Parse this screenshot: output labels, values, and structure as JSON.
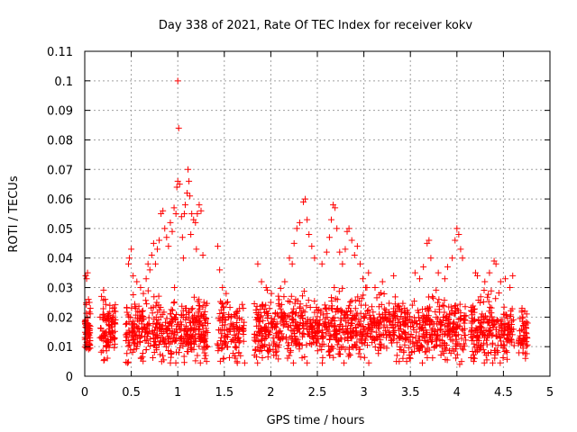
{
  "chart_data": {
    "type": "scatter",
    "title": "Day 338 of 2021, Rate Of TEC Index for receiver kokv",
    "xlabel": "GPS time / hours",
    "ylabel": "ROTI / TECUs",
    "xlim": [
      0,
      5
    ],
    "ylim": [
      0,
      0.11
    ],
    "x_ticks": [
      "0",
      "0.5",
      "1",
      "1.5",
      "2",
      "2.5",
      "3",
      "3.5",
      "4",
      "4.5",
      "5"
    ],
    "y_ticks": [
      "0",
      "0.01",
      "0.02",
      "0.03",
      "0.04",
      "0.05",
      "0.06",
      "0.07",
      "0.08",
      "0.09",
      "0.1",
      "0.11"
    ],
    "grid": true,
    "marker": "plus",
    "color": "#ff0000",
    "series": [
      {
        "name": "ROTI",
        "clusters": [
          {
            "x": [
              0.0,
              0.06
            ],
            "base": 0.015,
            "spread": 0.005,
            "n": 60
          },
          {
            "x": [
              0.16,
              0.33
            ],
            "base": 0.015,
            "spread": 0.006,
            "n": 90
          },
          {
            "x": [
              0.44,
              1.33
            ],
            "base": 0.015,
            "spread": 0.006,
            "n": 420
          },
          {
            "x": [
              1.42,
              1.72
            ],
            "base": 0.015,
            "spread": 0.006,
            "n": 120
          },
          {
            "x": [
              1.82,
              2.75
            ],
            "base": 0.016,
            "spread": 0.006,
            "n": 420
          },
          {
            "x": [
              2.75,
              3.3
            ],
            "base": 0.016,
            "spread": 0.006,
            "n": 240
          },
          {
            "x": [
              3.3,
              4.1
            ],
            "base": 0.016,
            "spread": 0.006,
            "n": 360
          },
          {
            "x": [
              4.15,
              4.62
            ],
            "base": 0.015,
            "spread": 0.006,
            "n": 220
          },
          {
            "x": [
              4.66,
              4.76
            ],
            "base": 0.014,
            "spread": 0.005,
            "n": 50
          }
        ],
        "points": [
          {
            "x": 0.01,
            "y": 0.034
          },
          {
            "x": 0.02,
            "y": 0.033
          },
          {
            "x": 0.03,
            "y": 0.035
          },
          {
            "x": 0.04,
            "y": 0.026
          },
          {
            "x": 0.05,
            "y": 0.025
          },
          {
            "x": 0.06,
            "y": 0.023
          },
          {
            "x": 0.18,
            "y": 0.027
          },
          {
            "x": 0.22,
            "y": 0.026
          },
          {
            "x": 0.27,
            "y": 0.024
          },
          {
            "x": 0.32,
            "y": 0.022
          },
          {
            "x": 0.47,
            "y": 0.038
          },
          {
            "x": 0.48,
            "y": 0.04
          },
          {
            "x": 0.5,
            "y": 0.043
          },
          {
            "x": 0.52,
            "y": 0.034
          },
          {
            "x": 0.56,
            "y": 0.032
          },
          {
            "x": 0.6,
            "y": 0.03
          },
          {
            "x": 0.63,
            "y": 0.028
          },
          {
            "x": 0.66,
            "y": 0.033
          },
          {
            "x": 0.7,
            "y": 0.036
          },
          {
            "x": 0.72,
            "y": 0.041
          },
          {
            "x": 0.74,
            "y": 0.045
          },
          {
            "x": 0.76,
            "y": 0.038
          },
          {
            "x": 0.78,
            "y": 0.043
          },
          {
            "x": 0.8,
            "y": 0.046
          },
          {
            "x": 0.82,
            "y": 0.055
          },
          {
            "x": 0.84,
            "y": 0.056
          },
          {
            "x": 0.86,
            "y": 0.05
          },
          {
            "x": 0.88,
            "y": 0.047
          },
          {
            "x": 0.9,
            "y": 0.044
          },
          {
            "x": 0.92,
            "y": 0.052
          },
          {
            "x": 0.94,
            "y": 0.049
          },
          {
            "x": 0.96,
            "y": 0.057
          },
          {
            "x": 0.98,
            "y": 0.055
          },
          {
            "x": 0.99,
            "y": 0.064
          },
          {
            "x": 1.0,
            "y": 0.066
          },
          {
            "x": 1.0,
            "y": 0.1
          },
          {
            "x": 1.01,
            "y": 0.084
          },
          {
            "x": 1.02,
            "y": 0.065
          },
          {
            "x": 1.04,
            "y": 0.054
          },
          {
            "x": 1.05,
            "y": 0.047
          },
          {
            "x": 1.07,
            "y": 0.055
          },
          {
            "x": 1.08,
            "y": 0.058
          },
          {
            "x": 1.1,
            "y": 0.062
          },
          {
            "x": 1.11,
            "y": 0.07
          },
          {
            "x": 1.12,
            "y": 0.066
          },
          {
            "x": 1.13,
            "y": 0.061
          },
          {
            "x": 1.15,
            "y": 0.055
          },
          {
            "x": 1.17,
            "y": 0.053
          },
          {
            "x": 1.19,
            "y": 0.052
          },
          {
            "x": 1.21,
            "y": 0.055
          },
          {
            "x": 1.23,
            "y": 0.058
          },
          {
            "x": 1.25,
            "y": 0.056
          },
          {
            "x": 1.27,
            "y": 0.041
          },
          {
            "x": 1.2,
            "y": 0.043
          },
          {
            "x": 1.14,
            "y": 0.048
          },
          {
            "x": 1.06,
            "y": 0.04
          },
          {
            "x": 0.68,
            "y": 0.038
          },
          {
            "x": 1.29,
            "y": 0.006
          },
          {
            "x": 1.3,
            "y": 0.007
          },
          {
            "x": 1.31,
            "y": 0.005
          },
          {
            "x": 1.43,
            "y": 0.044
          },
          {
            "x": 1.45,
            "y": 0.036
          },
          {
            "x": 1.48,
            "y": 0.03
          },
          {
            "x": 1.52,
            "y": 0.028
          },
          {
            "x": 1.86,
            "y": 0.038
          },
          {
            "x": 1.9,
            "y": 0.032
          },
          {
            "x": 1.95,
            "y": 0.03
          },
          {
            "x": 2.15,
            "y": 0.032
          },
          {
            "x": 2.2,
            "y": 0.04
          },
          {
            "x": 2.23,
            "y": 0.038
          },
          {
            "x": 2.25,
            "y": 0.045
          },
          {
            "x": 2.28,
            "y": 0.05
          },
          {
            "x": 2.31,
            "y": 0.052
          },
          {
            "x": 2.35,
            "y": 0.059
          },
          {
            "x": 2.37,
            "y": 0.06
          },
          {
            "x": 2.39,
            "y": 0.053
          },
          {
            "x": 2.41,
            "y": 0.048
          },
          {
            "x": 2.44,
            "y": 0.044
          },
          {
            "x": 2.47,
            "y": 0.04
          },
          {
            "x": 2.55,
            "y": 0.038
          },
          {
            "x": 2.6,
            "y": 0.042
          },
          {
            "x": 2.63,
            "y": 0.047
          },
          {
            "x": 2.65,
            "y": 0.053
          },
          {
            "x": 2.67,
            "y": 0.058
          },
          {
            "x": 2.69,
            "y": 0.057
          },
          {
            "x": 2.71,
            "y": 0.05
          },
          {
            "x": 2.74,
            "y": 0.042
          },
          {
            "x": 2.77,
            "y": 0.038
          },
          {
            "x": 2.8,
            "y": 0.043
          },
          {
            "x": 2.82,
            "y": 0.049
          },
          {
            "x": 2.84,
            "y": 0.05
          },
          {
            "x": 2.87,
            "y": 0.046
          },
          {
            "x": 2.9,
            "y": 0.041
          },
          {
            "x": 2.93,
            "y": 0.044
          },
          {
            "x": 2.96,
            "y": 0.038
          },
          {
            "x": 2.99,
            "y": 0.033
          },
          {
            "x": 3.05,
            "y": 0.035
          },
          {
            "x": 3.12,
            "y": 0.03
          },
          {
            "x": 3.2,
            "y": 0.032
          },
          {
            "x": 3.32,
            "y": 0.034
          },
          {
            "x": 3.35,
            "y": 0.005
          },
          {
            "x": 3.38,
            "y": 0.005
          },
          {
            "x": 3.42,
            "y": 0.006
          },
          {
            "x": 3.46,
            "y": 0.005
          },
          {
            "x": 3.5,
            "y": 0.006
          },
          {
            "x": 3.55,
            "y": 0.035
          },
          {
            "x": 3.6,
            "y": 0.033
          },
          {
            "x": 3.64,
            "y": 0.037
          },
          {
            "x": 3.68,
            "y": 0.045
          },
          {
            "x": 3.7,
            "y": 0.046
          },
          {
            "x": 3.72,
            "y": 0.04
          },
          {
            "x": 3.8,
            "y": 0.035
          },
          {
            "x": 3.87,
            "y": 0.033
          },
          {
            "x": 3.9,
            "y": 0.037
          },
          {
            "x": 3.95,
            "y": 0.04
          },
          {
            "x": 3.98,
            "y": 0.046
          },
          {
            "x": 4.0,
            "y": 0.05
          },
          {
            "x": 4.02,
            "y": 0.048
          },
          {
            "x": 4.04,
            "y": 0.043
          },
          {
            "x": 4.06,
            "y": 0.04
          },
          {
            "x": 4.03,
            "y": 0.004
          },
          {
            "x": 4.05,
            "y": 0.005
          },
          {
            "x": 4.2,
            "y": 0.035
          },
          {
            "x": 4.22,
            "y": 0.034
          },
          {
            "x": 4.18,
            "y": 0.005
          },
          {
            "x": 4.19,
            "y": 0.006
          },
          {
            "x": 4.3,
            "y": 0.032
          },
          {
            "x": 4.35,
            "y": 0.035
          },
          {
            "x": 4.4,
            "y": 0.039
          },
          {
            "x": 4.42,
            "y": 0.038
          },
          {
            "x": 4.47,
            "y": 0.032
          },
          {
            "x": 4.52,
            "y": 0.033
          },
          {
            "x": 4.57,
            "y": 0.03
          },
          {
            "x": 4.6,
            "y": 0.034
          },
          {
            "x": 4.7,
            "y": 0.023
          },
          {
            "x": 4.73,
            "y": 0.022
          }
        ]
      }
    ]
  }
}
